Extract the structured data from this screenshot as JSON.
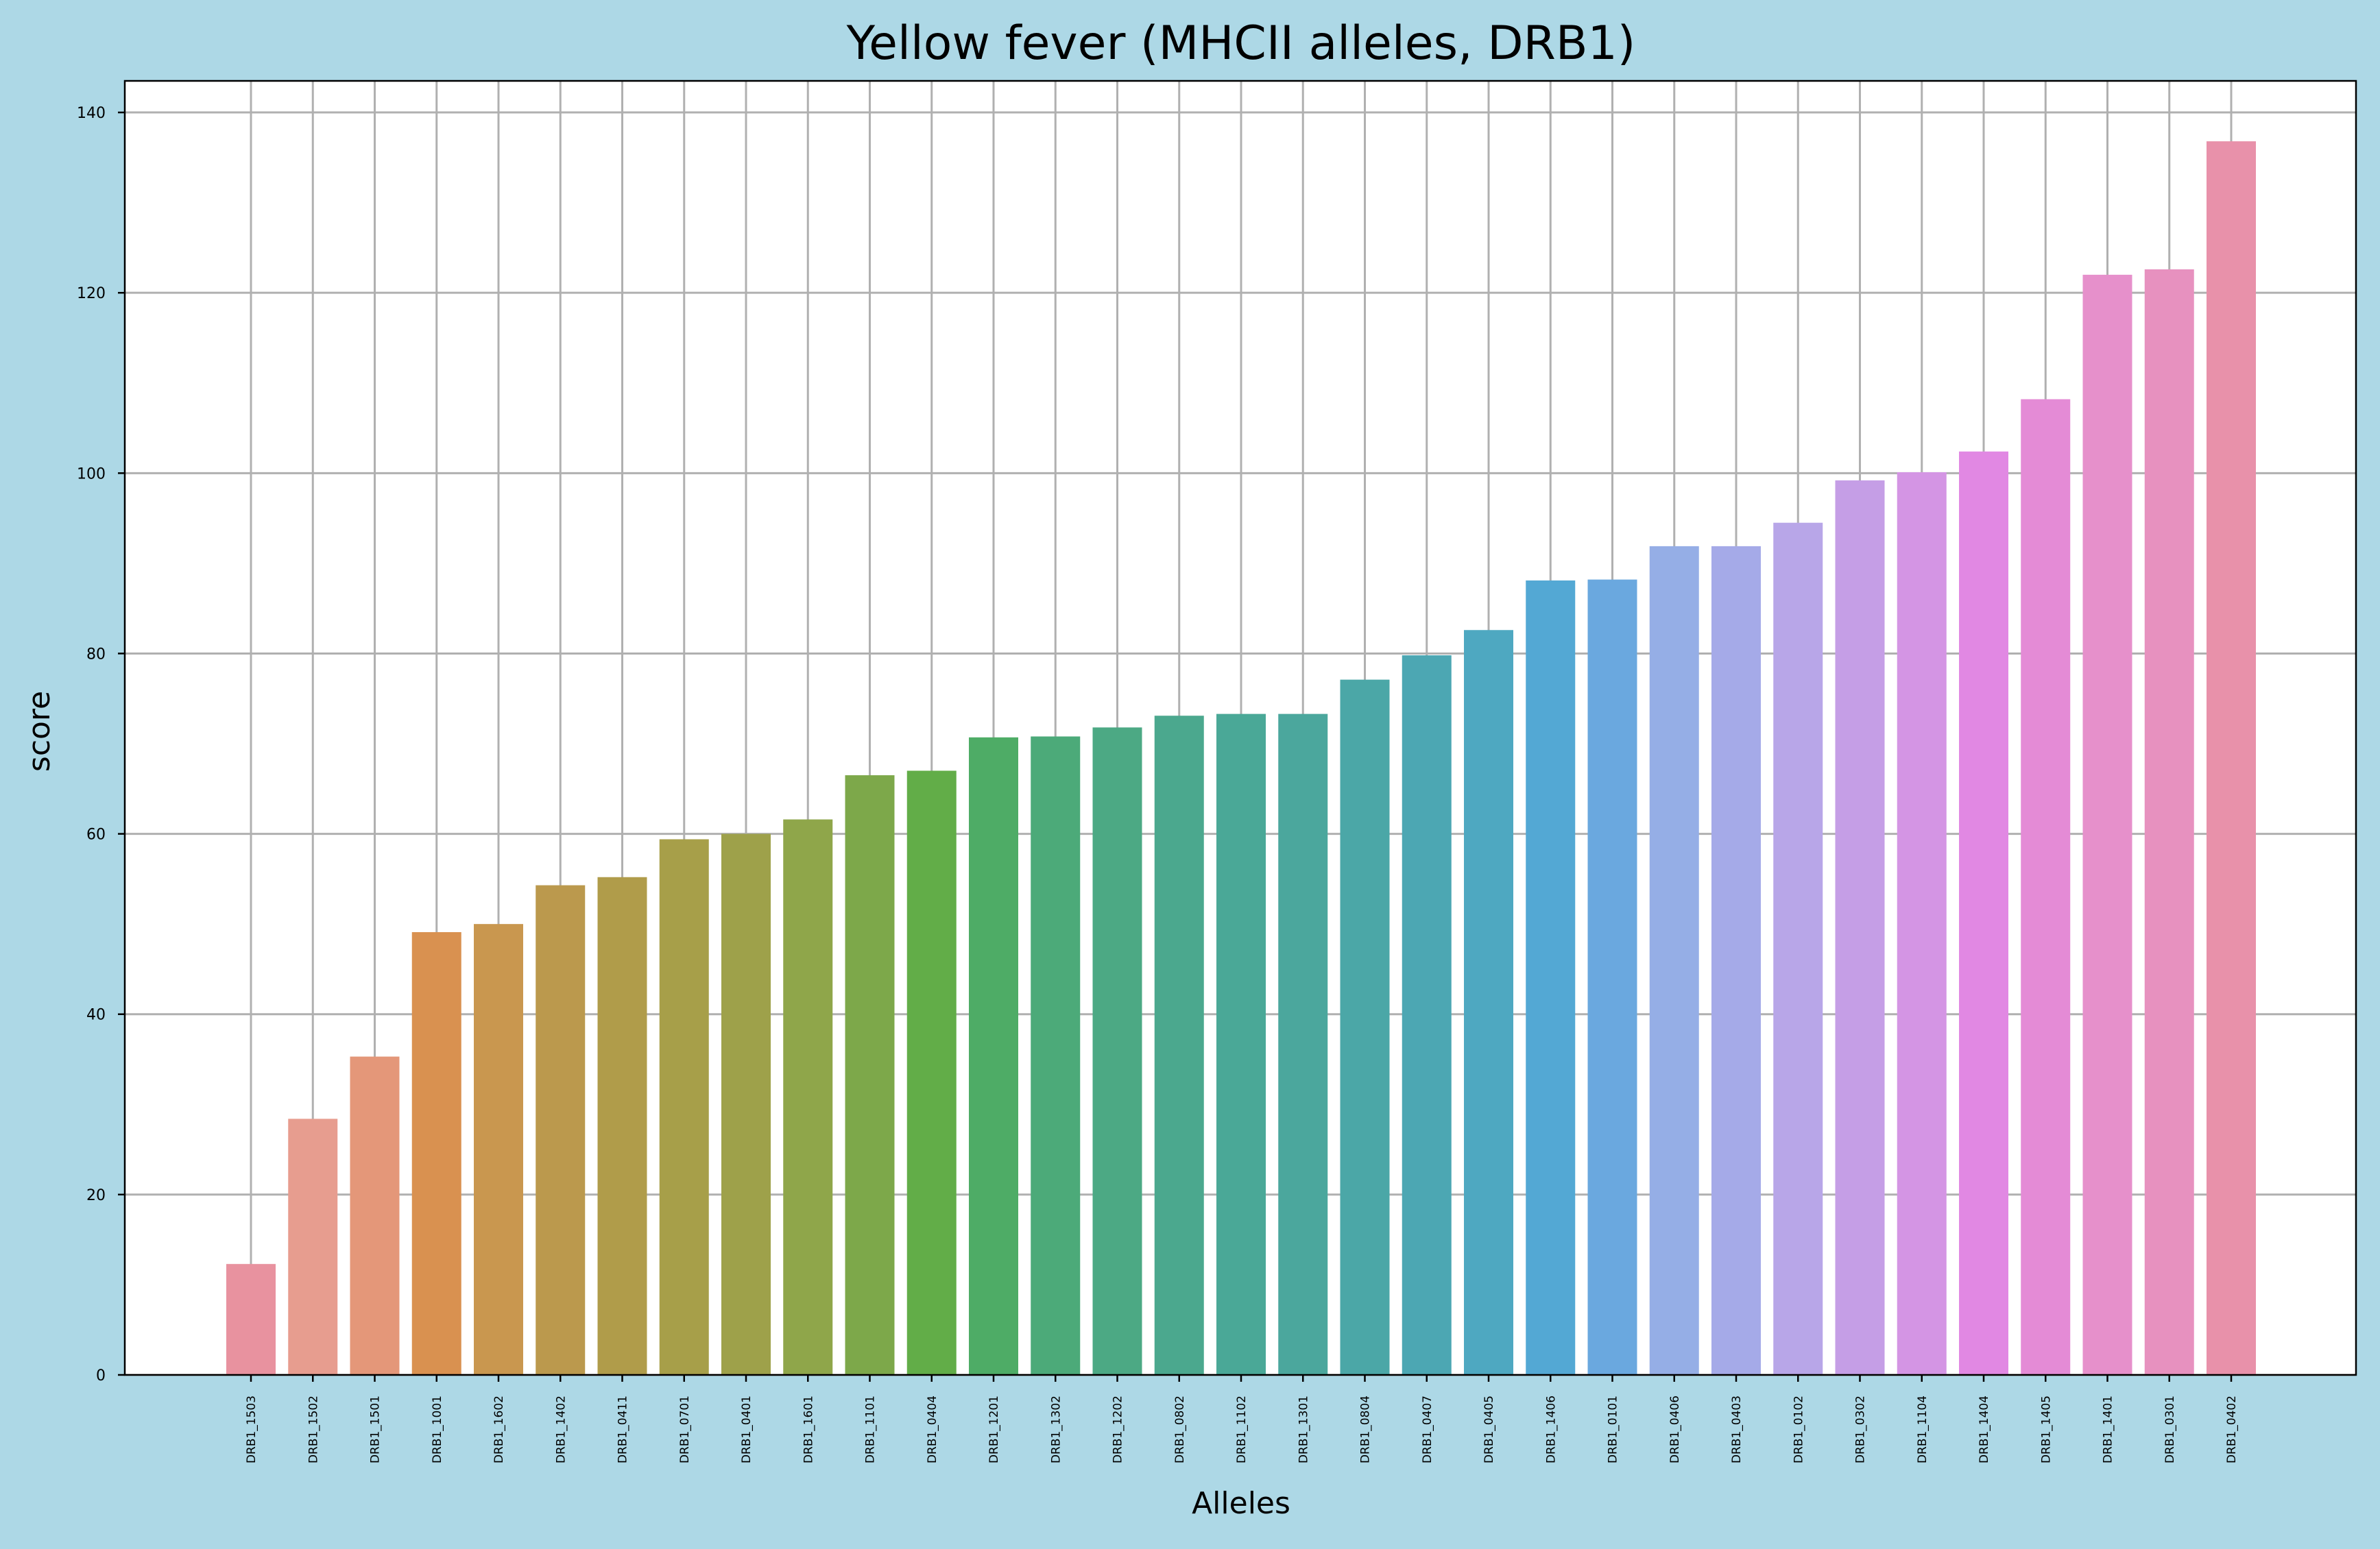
{
  "chart_data": {
    "type": "bar",
    "title": "Yellow fever (MHCII alleles, DRB1)",
    "xlabel": "Alleles",
    "ylabel": "score",
    "ylim": [
      0,
      143.5
    ],
    "yticks": [
      0,
      20,
      40,
      60,
      80,
      100,
      120,
      140
    ],
    "grid": true,
    "legend": "none",
    "categories": [
      "DRB1_1503",
      "DRB1_1502",
      "DRB1_1501",
      "DRB1_1001",
      "DRB1_1602",
      "DRB1_1402",
      "DRB1_0411",
      "DRB1_0701",
      "DRB1_0401",
      "DRB1_1601",
      "DRB1_1101",
      "DRB1_0404",
      "DRB1_1201",
      "DRB1_1302",
      "DRB1_1202",
      "DRB1_0802",
      "DRB1_1102",
      "DRB1_1301",
      "DRB1_0804",
      "DRB1_0407",
      "DRB1_0405",
      "DRB1_1406",
      "DRB1_0101",
      "DRB1_0406",
      "DRB1_0403",
      "DRB1_0102",
      "DRB1_0302",
      "DRB1_1104",
      "DRB1_1404",
      "DRB1_1405",
      "DRB1_1401",
      "DRB1_0301",
      "DRB1_0402"
    ],
    "values": [
      12.3,
      28.4,
      35.3,
      49.1,
      50.0,
      54.3,
      55.2,
      59.4,
      60.0,
      61.6,
      66.5,
      67.0,
      70.7,
      70.8,
      71.8,
      73.1,
      73.3,
      73.3,
      77.1,
      79.8,
      82.6,
      88.1,
      88.2,
      91.9,
      91.9,
      94.5,
      99.2,
      100.1,
      102.4,
      108.2,
      122.0,
      122.6,
      136.8
    ],
    "colors": [
      "#e8929f",
      "#e79d8f",
      "#e49779",
      "#d99150",
      "#c9974f",
      "#bb994d",
      "#b09c4a",
      "#a79f49",
      "#9ea14a",
      "#8fa64a",
      "#7da84a",
      "#62ad48",
      "#4eac66",
      "#4caa79",
      "#4ca984",
      "#4ba88e",
      "#4aa897",
      "#4ba79d",
      "#4ba7a7",
      "#4ca7b3",
      "#4ea8c1",
      "#53a8d4",
      "#6aa8df",
      "#95aee6",
      "#a5aae8",
      "#b8a6e8",
      "#c59ee6",
      "#d495e4",
      "#e188e3",
      "#e48bd6",
      "#e690cb",
      "#e791bf",
      "#e891aa"
    ],
    "gridColor": "#b0b0b0"
  }
}
